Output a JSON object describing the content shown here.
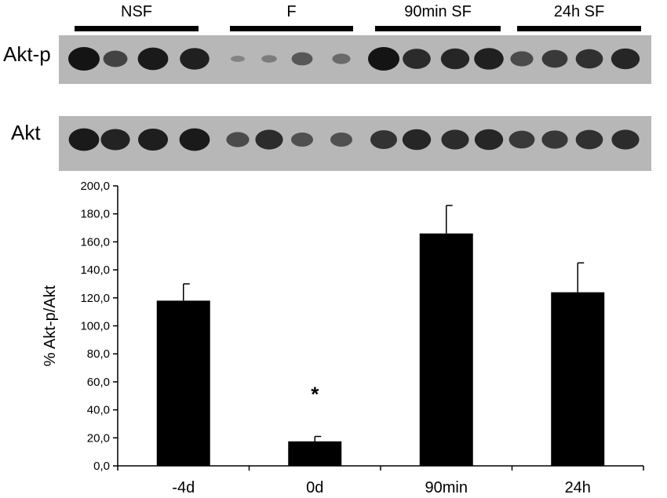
{
  "blot": {
    "groups": [
      "NSF",
      "F",
      "90min SF",
      "24h SF"
    ],
    "rows": [
      "Akt-p",
      "Akt"
    ],
    "phospho_intensity": [
      1.0,
      0.62,
      0.95,
      0.9,
      0.08,
      0.15,
      0.45,
      0.3,
      1.0,
      0.82,
      0.85,
      0.9,
      0.55,
      0.7,
      0.78,
      0.85
    ],
    "total_intensity": [
      0.95,
      0.88,
      0.92,
      0.95,
      0.55,
      0.8,
      0.5,
      0.5,
      0.75,
      0.85,
      0.8,
      0.85,
      0.7,
      0.72,
      0.78,
      0.8
    ]
  },
  "colors": {
    "bar": "#000000",
    "blot_background": "#b7b7b7",
    "band": "#141414"
  },
  "chart_data": {
    "type": "bar",
    "categories": [
      "-4d",
      "0d",
      "90min",
      "24h"
    ],
    "values": [
      118.0,
      17.5,
      166.0,
      124.0
    ],
    "errors": [
      12.0,
      3.5,
      20.0,
      21.0
    ],
    "annotations": [
      "",
      "*",
      "",
      ""
    ],
    "ylabel": "% Akt-p/Akt",
    "ylim": [
      0,
      200
    ],
    "yticks": [
      0,
      20,
      40,
      60,
      80,
      100,
      120,
      140,
      160,
      180,
      200
    ],
    "ytick_labels": [
      "0,0",
      "20,0",
      "40,0",
      "60,0",
      "80,0",
      "100,0",
      "120,0",
      "140,0",
      "160,0",
      "180,0",
      "200,0"
    ],
    "grid": false,
    "legend": "none"
  }
}
